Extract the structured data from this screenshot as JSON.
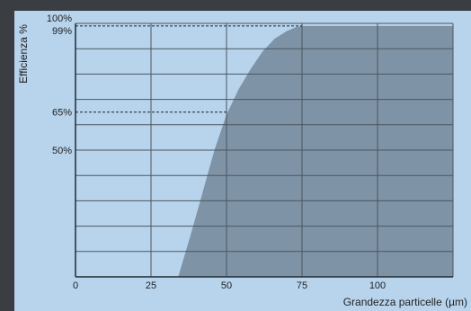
{
  "chart_data": {
    "type": "area",
    "xlabel": "Grandezza particelle (µm)",
    "ylabel": "Efficienza %",
    "xlim": [
      0,
      125
    ],
    "ylim": [
      0,
      100
    ],
    "x_ticks": [
      0,
      25,
      50,
      75,
      100
    ],
    "y_tick_labels": [
      {
        "value": 100,
        "label": "100%"
      },
      {
        "value": 99,
        "label": "99%"
      },
      {
        "value": 65,
        "label": "65%"
      },
      {
        "value": 50,
        "label": "50%"
      }
    ],
    "reference_lines": [
      {
        "y": 99,
        "x_end": 75
      },
      {
        "y": 65,
        "x_end": 50
      }
    ],
    "grid": true,
    "series": [
      {
        "x": [
          34,
          38,
          42,
          46,
          50,
          54,
          58,
          62,
          66,
          70,
          73,
          75,
          125
        ],
        "y": [
          0,
          16,
          33,
          50,
          64,
          74,
          82,
          89,
          94,
          97,
          98.5,
          99,
          99
        ]
      }
    ],
    "colors": {
      "background": "#b8d4ec",
      "fill": "#7f93a6",
      "grid": "#4a5660",
      "axis": "#1f2a33"
    }
  }
}
